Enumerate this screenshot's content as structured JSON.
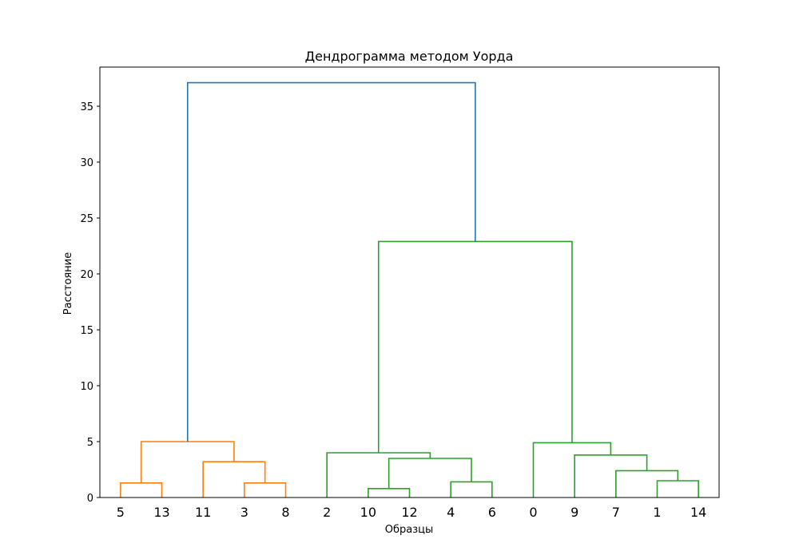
{
  "chart_data": {
    "type": "dendrogram",
    "title": "Дендрограмма методом Уорда",
    "xlabel": "Образцы",
    "ylabel": "Расстояние",
    "ylim": [
      0,
      38.5
    ],
    "yticks": [
      0,
      5,
      10,
      15,
      20,
      25,
      30,
      35
    ],
    "grid": false,
    "leaf_order": [
      "5",
      "13",
      "11",
      "3",
      "8",
      "2",
      "10",
      "12",
      "4",
      "6",
      "0",
      "9",
      "7",
      "1",
      "14"
    ],
    "merges": [
      {
        "left": "5",
        "right": "13",
        "height": 1.3,
        "color": "#ff7f0e"
      },
      {
        "left": "3",
        "right": "8",
        "height": 1.3,
        "color": "#ff7f0e"
      },
      {
        "left": "11",
        "right": "3+8",
        "height": 3.2,
        "color": "#ff7f0e"
      },
      {
        "left": "5+13",
        "right": "11+3+8",
        "height": 5.0,
        "color": "#ff7f0e"
      },
      {
        "left": "10",
        "right": "12",
        "height": 0.8,
        "color": "#2ca02c"
      },
      {
        "left": "4",
        "right": "6",
        "height": 1.4,
        "color": "#2ca02c"
      },
      {
        "left": "10+12",
        "right": "4+6",
        "height": 3.5,
        "color": "#2ca02c"
      },
      {
        "left": "2",
        "right": "10+12+4+6",
        "height": 4.0,
        "color": "#2ca02c"
      },
      {
        "left": "1",
        "right": "14",
        "height": 1.5,
        "color": "#2ca02c"
      },
      {
        "left": "7",
        "right": "1+14",
        "height": 2.4,
        "color": "#2ca02c"
      },
      {
        "left": "9",
        "right": "7+1+14",
        "height": 3.8,
        "color": "#2ca02c"
      },
      {
        "left": "0",
        "right": "9+7+1+14",
        "height": 4.9,
        "color": "#2ca02c"
      },
      {
        "left": "2+10+12+4+6",
        "right": "0+9+7+1+14",
        "height": 22.9,
        "color": "#2ca02c"
      },
      {
        "left": "5+13+11+3+8",
        "right": "2+10+12+4+6+0+9+7+1+14",
        "height": 37.1,
        "color": "#1f77b4"
      }
    ]
  }
}
